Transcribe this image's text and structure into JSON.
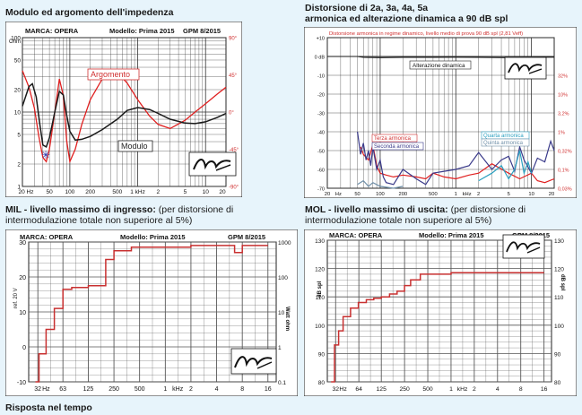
{
  "page": {
    "footer_caption": "Risposta nel tempo"
  },
  "chart_data": [
    {
      "id": "impedance",
      "type": "line",
      "caption": "Modulo ed argomento dell'impedenza",
      "header": {
        "brand": "MARCA: OPERA",
        "model": "Modello: Prima 2015",
        "gpm": "GPM 8/2015"
      },
      "ylabel": "Ohm",
      "y_ticks": [
        "100",
        "50",
        "20",
        "10",
        "5",
        "2",
        "1"
      ],
      "y_right_ticks": [
        "90°",
        "45°",
        "0°",
        "-45°",
        "-90°"
      ],
      "x_ticks": [
        "20 Hz",
        "50",
        "100",
        "200",
        "500",
        "1 kHz",
        "2",
        "5",
        "10",
        "20"
      ],
      "xlim": [
        20,
        20000
      ],
      "ylim": [
        1,
        100
      ],
      "y_right_lim": [
        -90,
        90
      ],
      "xscale": "log",
      "yscale": "log",
      "series": [
        {
          "name": "Argomento",
          "axis": "right",
          "color": "#e02020",
          "x": [
            20,
            25,
            30,
            35,
            40,
            45,
            50,
            60,
            70,
            80,
            90,
            100,
            120,
            150,
            200,
            300,
            400,
            500,
            700,
            1000,
            1500,
            2000,
            3000,
            5000,
            7000,
            10000,
            15000,
            20000
          ],
          "y": [
            50,
            30,
            5,
            -30,
            -55,
            -60,
            -45,
            0,
            40,
            20,
            -35,
            -60,
            -45,
            -15,
            15,
            40,
            50,
            48,
            35,
            15,
            -5,
            -15,
            -20,
            -10,
            0,
            10,
            22,
            30
          ]
        },
        {
          "name": "Modulo",
          "axis": "left",
          "color": "#1a1a1a",
          "x": [
            20,
            25,
            28,
            32,
            36,
            40,
            45,
            50,
            60,
            70,
            80,
            90,
            100,
            120,
            150,
            200,
            300,
            500,
            700,
            1000,
            1500,
            2000,
            3000,
            5000,
            7000,
            10000,
            15000,
            20000
          ],
          "y": [
            12,
            22,
            24,
            16,
            7,
            3.6,
            3.4,
            4.5,
            10,
            19,
            17,
            9,
            5.5,
            4.2,
            4.3,
            4.7,
            5.8,
            8,
            10.5,
            11.5,
            10.8,
            9.6,
            8,
            7.1,
            7,
            7.4,
            8.5,
            9.6
          ]
        }
      ],
      "marker_label": "✳"
    },
    {
      "id": "distortion",
      "type": "line",
      "caption_lines": [
        "Distorsione di 2a, 3a, 4a, 5a",
        "armonica ed alterazione dinamica a 90 dB spl"
      ],
      "header": "Distorsione armonica in regime dinamico, livello medio di prova 90 dB spl (2,81 Veff)",
      "ylabel": "dB",
      "y_ticks": [
        "+10",
        "0 dB",
        "-10",
        "-20",
        "-30",
        "-40",
        "-50",
        "-60",
        "-70"
      ],
      "y_right_ticks": [
        "32%",
        "10%",
        "3,2%",
        "1%",
        "0,32%",
        "0,1%",
        "0,03%"
      ],
      "x_ticks": [
        "20",
        "Hz",
        "50",
        "100",
        "200",
        "500",
        "1",
        "kHz",
        "2",
        "5",
        "10",
        "20"
      ],
      "xlim": [
        20,
        20000
      ],
      "ylim": [
        -70,
        10
      ],
      "xscale": "log",
      "labels": {
        "dyn": "Alterazione dinamica",
        "h3": "Terza armonica",
        "h2": "Seconda armonica",
        "h4": "Quarta armonica",
        "h5": "Quinta armonica"
      },
      "series": [
        {
          "name": "Alterazione dinamica",
          "color": "#1a1a1a",
          "x": [
            20,
            40,
            50,
            60,
            100,
            200,
            500,
            1000,
            2000,
            5000,
            10000,
            15000,
            20000
          ],
          "y": [
            0,
            0,
            0,
            -0.5,
            -0.6,
            -0.5,
            -0.5,
            -0.4,
            -0.5,
            -0.6,
            -0.5,
            -0.4,
            -0.4
          ]
        },
        {
          "name": "Terza armonica",
          "color": "#e02020",
          "x": [
            55,
            60,
            70,
            80,
            90,
            100,
            120,
            150,
            200,
            300,
            400,
            500,
            700,
            1000,
            1500,
            2000,
            3000,
            5000,
            7000,
            10000,
            12000,
            15000,
            20000
          ],
          "y": [
            -48,
            -52,
            -55,
            -47,
            -58,
            -62,
            -63,
            -64,
            -63,
            -64,
            -65,
            -62,
            -64,
            -65,
            -63,
            -62,
            -57,
            -62,
            -65,
            -62,
            -66,
            -67,
            -65
          ]
        },
        {
          "name": "Seconda armonica",
          "color": "#3a3a8a",
          "x": [
            50,
            55,
            60,
            65,
            70,
            75,
            80,
            90,
            100,
            110,
            120,
            150,
            200,
            300,
            400,
            500,
            700,
            1000,
            1500,
            2000,
            3000,
            4000,
            5000,
            6000,
            7000,
            8000,
            10000,
            12000,
            15000,
            18000,
            20000
          ],
          "y": [
            -40,
            -52,
            -46,
            -55,
            -50,
            -58,
            -48,
            -60,
            -55,
            -64,
            -67,
            -68,
            -60,
            -65,
            -68,
            -62,
            -61,
            -60,
            -58,
            -51,
            -60,
            -55,
            -53,
            -61,
            -48,
            -55,
            -62,
            -54,
            -56,
            -45,
            -50
          ]
        },
        {
          "name": "Quarta armonica",
          "color": "#2aa0c0",
          "x": [
            2000,
            3000,
            4000,
            5000,
            6000,
            7000,
            8000,
            9000,
            10000
          ],
          "y": [
            -66,
            -62,
            -58,
            -65,
            -60,
            -50,
            -62,
            -56,
            -62
          ]
        },
        {
          "name": "Quinta armonica",
          "color": "#6f8fa8",
          "x": [
            50,
            60,
            70,
            80,
            100,
            150,
            200
          ],
          "y": [
            -68,
            -66,
            -69,
            -67,
            -69,
            -70,
            -69
          ]
        }
      ]
    },
    {
      "id": "mil",
      "type": "line",
      "caption_bold": "MIL - livello massimo di ingresso:",
      "caption_rest": " (per distorsione di intermodulazione totale non superiore al 5%)",
      "header": {
        "brand": "MARCA: OPERA",
        "model": "Modello: Prima 2015",
        "gpm": "GPM  8/2015"
      },
      "ylabel": "ref. 20 V",
      "ylabel_right": "Watt ohm",
      "y_ticks": [
        "30",
        "20",
        "10",
        "0",
        "-10"
      ],
      "y_right_ticks": [
        "1000",
        "100",
        "10",
        "1",
        "0.1"
      ],
      "x_ticks": [
        "32",
        "Hz",
        "63",
        "125",
        "250",
        "500",
        "1",
        "kHz",
        "2",
        "4",
        "8",
        "16"
      ],
      "xlim": [
        25,
        20000
      ],
      "ylim": [
        -10,
        30
      ],
      "xscale": "log",
      "series": [
        {
          "name": "",
          "color": "#c83030",
          "x": [
            30,
            33,
            33,
            40,
            40,
            50,
            50,
            63,
            63,
            80,
            80,
            125,
            125,
            200,
            200,
            250,
            250,
            400,
            400,
            2000,
            2000,
            6500,
            6500,
            8000,
            8000,
            16000
          ],
          "y": [
            -10,
            -10,
            -2,
            -2,
            5,
            5,
            11,
            11,
            16.5,
            16.5,
            17,
            17,
            17.5,
            17.5,
            25,
            25,
            27.5,
            27.5,
            28.5,
            28.5,
            29,
            29,
            27,
            27,
            29,
            29
          ]
        }
      ]
    },
    {
      "id": "mol",
      "type": "line",
      "caption_bold": "MOL - livello massimo di uscita:",
      "caption_rest": " (per distorsione di intermodulazione totale non superiore al 5%)",
      "header": {
        "brand": "MARCA: OPERA",
        "model": "Modello: Prima 2015",
        "gpm": "GPM  8/2015"
      },
      "ylabel": "dB spl",
      "y_ticks": [
        "130",
        "120",
        "110",
        "100",
        "90",
        "80"
      ],
      "x_ticks": [
        "32",
        "Hz",
        "64",
        "125",
        "250",
        "500",
        "1",
        "kHz",
        "2",
        "4",
        "8",
        "16"
      ],
      "xlim": [
        25,
        20000
      ],
      "ylim": [
        80,
        130
      ],
      "xscale": "log",
      "series": [
        {
          "name": "",
          "color": "#c83030",
          "x": [
            28,
            31,
            31,
            35,
            35,
            40,
            40,
            50,
            50,
            63,
            63,
            80,
            80,
            100,
            100,
            125,
            125,
            160,
            160,
            200,
            200,
            250,
            250,
            300,
            300,
            400,
            400,
            1000,
            1000,
            16000
          ],
          "y": [
            80,
            80,
            93,
            93,
            98,
            98,
            103,
            103,
            106,
            106,
            108,
            108,
            109,
            109,
            109.5,
            109.5,
            110,
            110,
            111,
            111,
            112,
            112,
            114,
            114,
            116,
            116,
            118,
            118,
            118.5,
            118.5
          ]
        }
      ]
    }
  ]
}
